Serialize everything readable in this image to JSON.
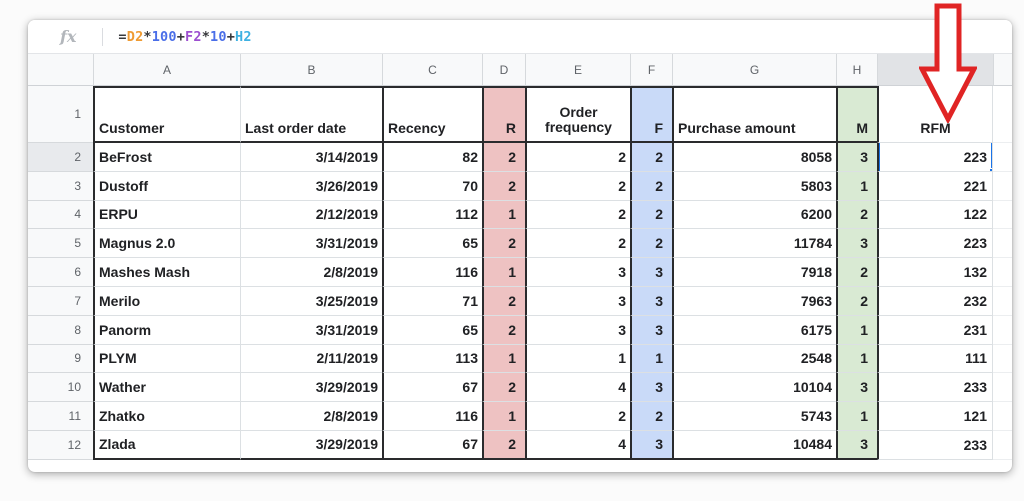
{
  "formula_bar": {
    "fx_label": "fx",
    "formula_full": "=D2*100+F2*10+H2",
    "tokens": [
      {
        "text": "=",
        "color_key": "formula_operator"
      },
      {
        "text": "D2",
        "color_key": "formula_orange"
      },
      {
        "text": "*",
        "color_key": "formula_operator"
      },
      {
        "text": "100",
        "color_key": "formula_blue"
      },
      {
        "text": "+",
        "color_key": "formula_operator"
      },
      {
        "text": "F2",
        "color_key": "formula_purple"
      },
      {
        "text": "*",
        "color_key": "formula_operator"
      },
      {
        "text": "10",
        "color_key": "formula_blue"
      },
      {
        "text": "+",
        "color_key": "formula_operator"
      },
      {
        "text": "H2",
        "color_key": "formula_cyan"
      }
    ]
  },
  "sheet": {
    "column_letters": [
      "A",
      "B",
      "C",
      "D",
      "E",
      "F",
      "G",
      "H",
      "I"
    ],
    "header_row": {
      "n": "1",
      "customer": "Customer",
      "last_order_date": "Last order date",
      "recency": "Recency",
      "r": "R",
      "order_frequency": "Order frequency",
      "f": "F",
      "purchase_amount": "Purchase amount",
      "m": "M",
      "rfm": "RFM"
    },
    "rows": [
      {
        "n": "2",
        "customer": "BeFrost",
        "date": "3/14/2019",
        "recency": "82",
        "r": "2",
        "freq": "2",
        "f": "2",
        "amount": "8058",
        "m": "3",
        "rfm": "223"
      },
      {
        "n": "3",
        "customer": "Dustoff",
        "date": "3/26/2019",
        "recency": "70",
        "r": "2",
        "freq": "2",
        "f": "2",
        "amount": "5803",
        "m": "1",
        "rfm": "221"
      },
      {
        "n": "4",
        "customer": "ERPU",
        "date": "2/12/2019",
        "recency": "112",
        "r": "1",
        "freq": "2",
        "f": "2",
        "amount": "6200",
        "m": "2",
        "rfm": "122"
      },
      {
        "n": "5",
        "customer": "Magnus 2.0",
        "date": "3/31/2019",
        "recency": "65",
        "r": "2",
        "freq": "2",
        "f": "2",
        "amount": "11784",
        "m": "3",
        "rfm": "223"
      },
      {
        "n": "6",
        "customer": "Mashes Mash",
        "date": "2/8/2019",
        "recency": "116",
        "r": "1",
        "freq": "3",
        "f": "3",
        "amount": "7918",
        "m": "2",
        "rfm": "132"
      },
      {
        "n": "7",
        "customer": "Merilo",
        "date": "3/25/2019",
        "recency": "71",
        "r": "2",
        "freq": "3",
        "f": "3",
        "amount": "7963",
        "m": "2",
        "rfm": "232"
      },
      {
        "n": "8",
        "customer": "Panorm",
        "date": "3/31/2019",
        "recency": "65",
        "r": "2",
        "freq": "3",
        "f": "3",
        "amount": "6175",
        "m": "1",
        "rfm": "231"
      },
      {
        "n": "9",
        "customer": "PLYM",
        "date": "2/11/2019",
        "recency": "113",
        "r": "1",
        "freq": "1",
        "f": "1",
        "amount": "2548",
        "m": "1",
        "rfm": "111"
      },
      {
        "n": "10",
        "customer": "Wather",
        "date": "3/29/2019",
        "recency": "67",
        "r": "2",
        "freq": "4",
        "f": "3",
        "amount": "10104",
        "m": "3",
        "rfm": "233"
      },
      {
        "n": "11",
        "customer": "Zhatko",
        "date": "2/8/2019",
        "recency": "116",
        "r": "1",
        "freq": "2",
        "f": "2",
        "amount": "5743",
        "m": "1",
        "rfm": "121"
      },
      {
        "n": "12",
        "customer": "Zlada",
        "date": "3/29/2019",
        "recency": "67",
        "r": "2",
        "freq": "4",
        "f": "3",
        "amount": "10484",
        "m": "3",
        "rfm": "233"
      }
    ],
    "selection": {
      "row_index": 0,
      "column_key": "rfm",
      "value": "223"
    }
  },
  "annotations": {
    "arrow": "red-down-arrow pointing at RFM column"
  },
  "colors": {
    "r_fill": "#eec2c2",
    "f_fill": "#c9daf8",
    "m_fill": "#d9ead3",
    "sel_blue": "#1a73e8",
    "arrow_red": "#e02424",
    "range_border": "#2a2b2d",
    "formula_operator": "#37383c",
    "formula_orange": "#ef9b33",
    "formula_blue": "#4a6ee8",
    "formula_purple": "#9d4fd0",
    "formula_cyan": "#3eb1e2"
  }
}
